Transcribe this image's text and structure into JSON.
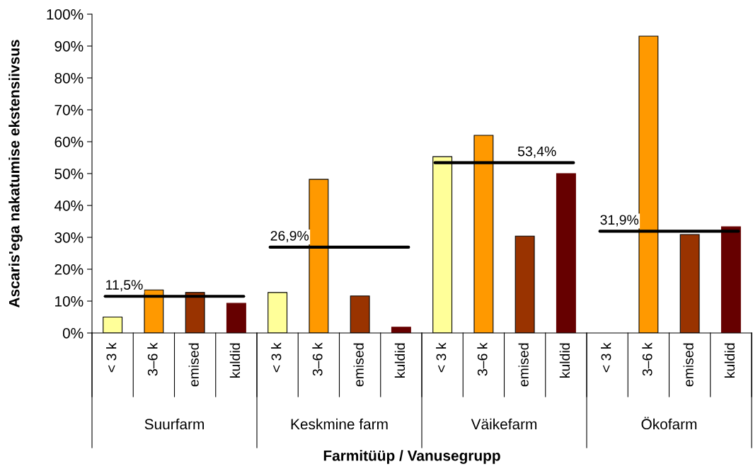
{
  "chart_data": {
    "type": "bar",
    "xlabel": "Farmitüüp / Vanusegrupp",
    "ylabel": "Ascaris'ega nakatumise ekstensiivsus",
    "categories": [
      "Suurfarm",
      "Keskmine farm",
      "Väikefarm",
      "Ökofarm"
    ],
    "series": [
      {
        "name": "< 3 k",
        "color": "#ffff99",
        "values": [
          5,
          12.7,
          55.3,
          null
        ]
      },
      {
        "name": "3–6 k",
        "color": "#ff9900",
        "values": [
          13.5,
          48.2,
          62,
          93.1
        ]
      },
      {
        "name": "emised",
        "color": "#993300",
        "values": [
          12.7,
          11.6,
          30.4,
          30.9
        ]
      },
      {
        "name": "kuldid",
        "color": "#660000",
        "values": [
          9.3,
          1.8,
          50,
          33.3
        ]
      }
    ],
    "ylim": [
      0,
      100
    ],
    "yticks": [
      {
        "value": 0,
        "label": "0%"
      },
      {
        "value": 10,
        "label": "10%"
      },
      {
        "value": 20,
        "label": "20%"
      },
      {
        "value": 30,
        "label": "30%"
      },
      {
        "value": 40,
        "label": "40%"
      },
      {
        "value": 50,
        "label": "50%"
      },
      {
        "value": 60,
        "label": "60%"
      },
      {
        "value": 70,
        "label": "70%"
      },
      {
        "value": 80,
        "label": "80%"
      },
      {
        "value": 90,
        "label": "90%"
      },
      {
        "value": 100,
        "label": "100%"
      }
    ],
    "ref_lines": [
      {
        "axis": "y",
        "value": 11.5,
        "label": "11,5%",
        "color": "#000000"
      },
      {
        "axis": "y",
        "value": 26.9,
        "label": "26,9%",
        "color": "#000000"
      },
      {
        "axis": "y",
        "value": 53.4,
        "label": "53,4%",
        "color": "#000000"
      },
      {
        "axis": "y",
        "value": 31.9,
        "label": "31,9%",
        "color": "#000000"
      }
    ],
    "grid": false,
    "legend": false
  }
}
